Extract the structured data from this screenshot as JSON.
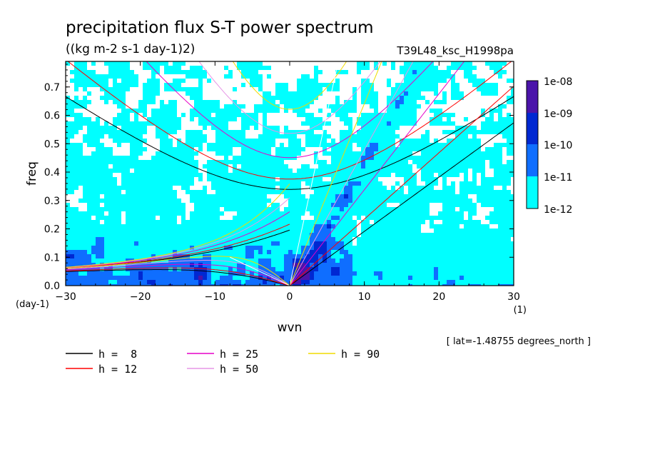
{
  "title": "precipitation flux S-T power spectrum",
  "units": "((kg m-2 s-1 day-1)2)",
  "run_label": "T39L48_ksc_H1998pa",
  "lat_note": "[ lat=-1.48755 degrees_north ]",
  "colorbar_labels": [
    "1e-08",
    "1e-09",
    "1e-10",
    "1e-11",
    "1e-12"
  ],
  "colors": {
    "shade_1e-12": "#00FFFF",
    "shade_1e-11": "#0F6EFF",
    "shade_1e-10": "#0028D2",
    "shade_1e-09": "#4B14AA",
    "h8": "#000000",
    "h12": "#FF0000",
    "h25": "#E600C8",
    "h50": "#E696E6",
    "h90": "#F0DC00"
  },
  "chart_data": {
    "type": "heatmap",
    "title": "precipitation flux S-T power spectrum",
    "xlabel": "wvn",
    "xunit": "(1)",
    "ylabel": "freq",
    "yunit": "(day-1)",
    "xlim": [
      -30,
      30
    ],
    "ylim": [
      0,
      0.79
    ],
    "xticks": [
      -30,
      -20,
      -10,
      0,
      10,
      20,
      30
    ],
    "xtick_labels": [
      "−30",
      "−20",
      "−10",
      "0",
      "10",
      "20",
      "30"
    ],
    "yticks": [
      0,
      0.1,
      0.2,
      0.3,
      0.4,
      0.5,
      0.6,
      0.7
    ],
    "ytick_labels": [
      "0.0",
      "0.1",
      "0.2",
      "0.3",
      "0.4",
      "0.5",
      "0.6",
      "0.7"
    ],
    "shading_levels": [
      "1e-12",
      "1e-11",
      "1e-10",
      "1e-09",
      "1e-08"
    ],
    "dispersion_curves": {
      "equivalent_depths_m": [
        8,
        12,
        25,
        50,
        90
      ],
      "legend": [
        {
          "label": "h =  8",
          "color": "#000000"
        },
        {
          "label": "h = 25",
          "color": "#E600C8"
        },
        {
          "label": "h = 90",
          "color": "#F0DC00"
        },
        {
          "label": "h = 12",
          "color": "#FF0000"
        },
        {
          "label": "h = 50",
          "color": "#E696E6"
        }
      ]
    },
    "grid": false,
    "legend_position": "bottom-left"
  }
}
